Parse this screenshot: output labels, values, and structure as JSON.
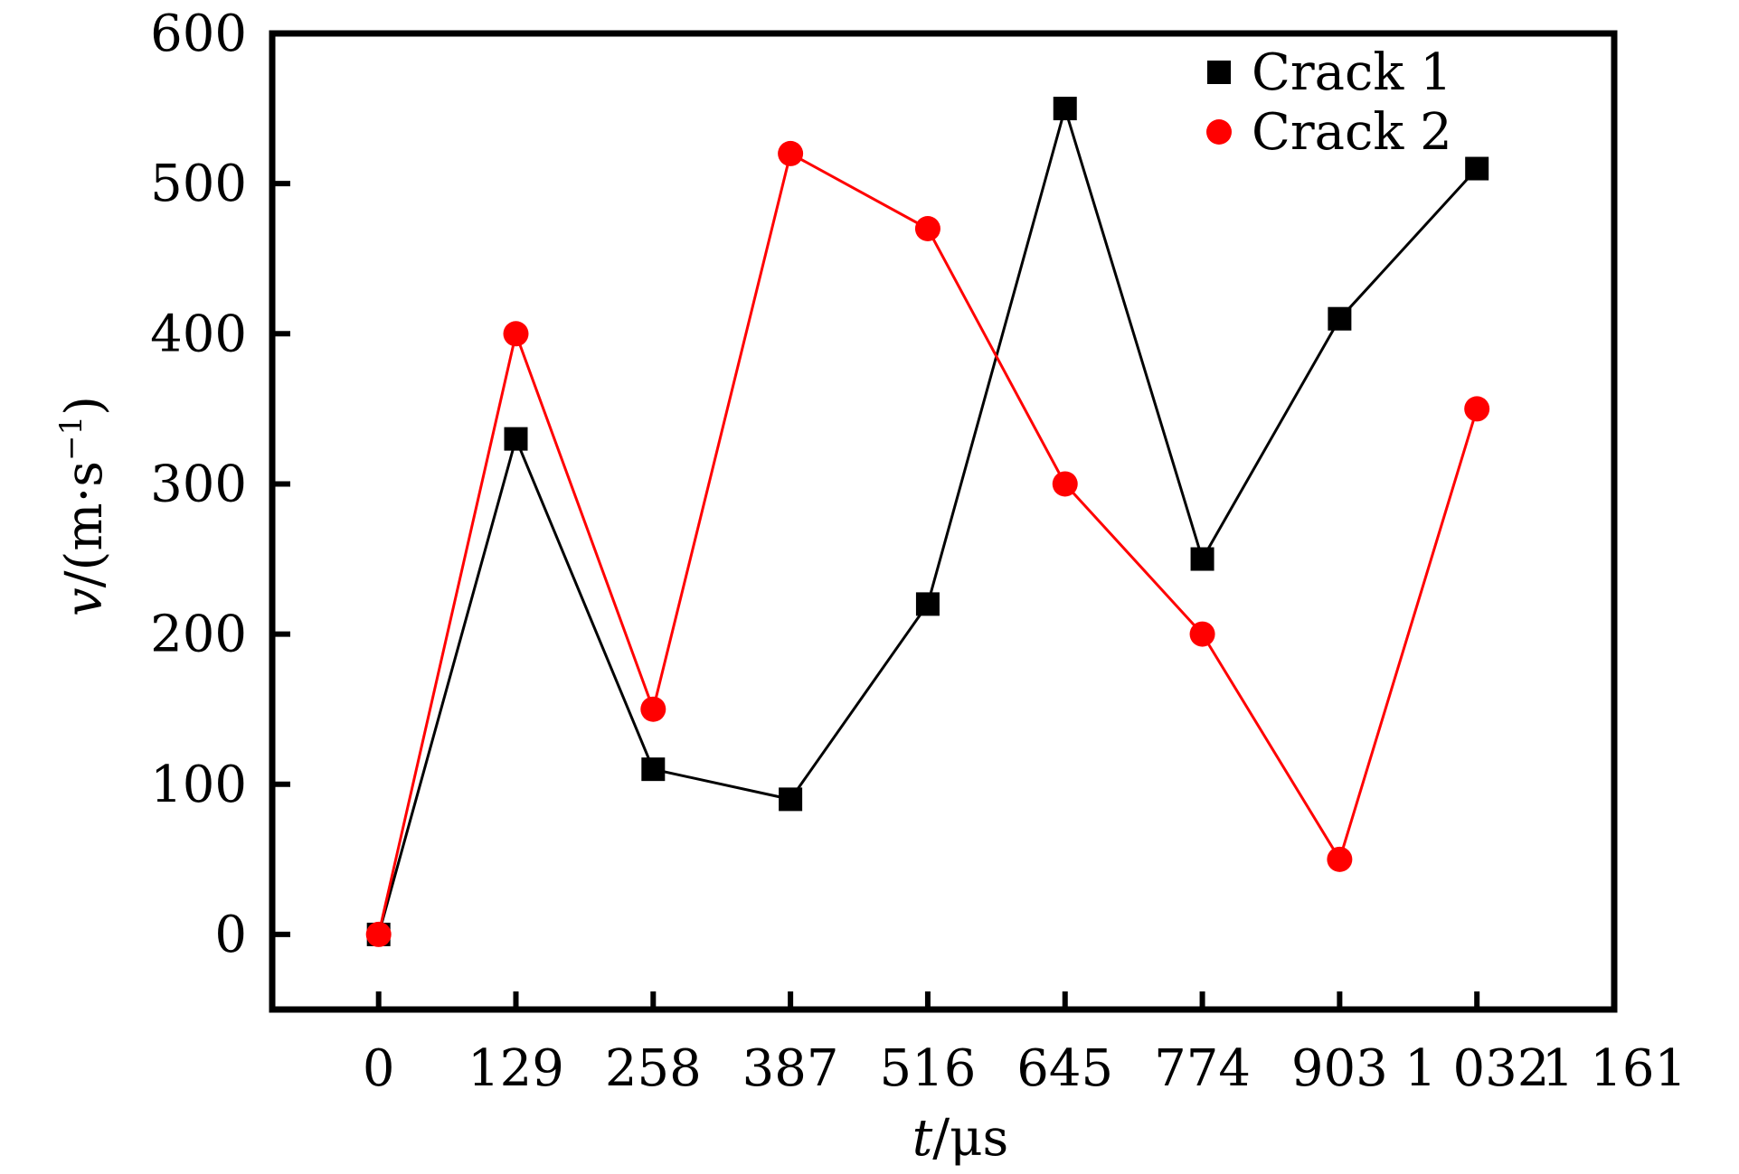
{
  "chart_data": {
    "type": "line",
    "x_ticks": [
      "0",
      "129",
      "258",
      "387",
      "516",
      "645",
      "774",
      "903",
      "1 032",
      "1 161"
    ],
    "y_ticks": [
      "0",
      "100",
      "200",
      "300",
      "400",
      "500",
      "600"
    ],
    "xlim": [
      -100,
      1161
    ],
    "ylim": [
      -50,
      600
    ],
    "grid": false,
    "legend_position": "top-right",
    "xlabel": {
      "var": "t",
      "unit": "/μs"
    },
    "ylabel": {
      "var": "v",
      "unit_open": "/(m·s",
      "unit_sup": "−1",
      "unit_close": ")"
    },
    "series": [
      {
        "name": "Crack 1",
        "color": "#000000",
        "marker": "square",
        "x": [
          0,
          129,
          258,
          387,
          516,
          645,
          774,
          903,
          1032
        ],
        "y": [
          0,
          330,
          110,
          90,
          220,
          550,
          250,
          410,
          510
        ]
      },
      {
        "name": "Crack 2",
        "color": "#ff0000",
        "marker": "circle",
        "x": [
          0,
          129,
          258,
          387,
          516,
          645,
          774,
          903,
          1032
        ],
        "y": [
          0,
          400,
          150,
          520,
          470,
          300,
          200,
          50,
          350
        ]
      }
    ]
  }
}
